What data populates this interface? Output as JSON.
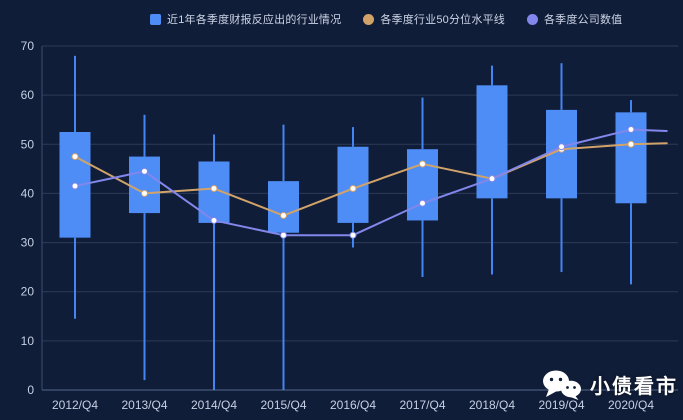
{
  "legend": {
    "items": [
      {
        "label": "近1年各季度财报反应出的行业情况",
        "marker": "square",
        "color": "#4e8df5"
      },
      {
        "label": "各季度行业50分位水平线",
        "marker": "circle",
        "color": "#d2a368"
      },
      {
        "label": "各季度公司数值",
        "marker": "circle",
        "color": "#8287eb"
      }
    ]
  },
  "watermark": {
    "icon": "wechat-icon",
    "text": "小债看市"
  },
  "colors": {
    "background": "#101d38",
    "gridline": "#2c3b59",
    "axis_line": "#55688e",
    "axis_text": "#c6d0e4",
    "candle": "#4e8df5",
    "percentile_line": "#d2a368",
    "company_line": "#8287eb"
  },
  "chart_data": {
    "type": "candlestick+line",
    "title": "",
    "categories": [
      "2012/Q4",
      "2013/Q4",
      "2014/Q4",
      "2015/Q4",
      "2016/Q4",
      "2017/Q4",
      "2018/Q4",
      "2019/Q4",
      "2020/Q4"
    ],
    "series": [
      {
        "name": "近1年各季度财报反应出的行业情况",
        "type": "candlestick",
        "color": "#4e8df5",
        "boxes": [
          {
            "low": 14.5,
            "box_low": 31,
            "box_high": 52.5,
            "high": 68
          },
          {
            "low": 2,
            "box_low": 36,
            "box_high": 47.5,
            "high": 56
          },
          {
            "low": 0,
            "box_low": 34,
            "box_high": 46.5,
            "high": 52
          },
          {
            "low": 0,
            "box_low": 32,
            "box_high": 42.5,
            "high": 54
          },
          {
            "low": 29,
            "box_low": 34,
            "box_high": 49.5,
            "high": 53.5
          },
          {
            "low": 23,
            "box_low": 34.5,
            "box_high": 49,
            "high": 59.5
          },
          {
            "low": 23.5,
            "box_low": 39,
            "box_high": 62,
            "high": 66
          },
          {
            "low": 24,
            "box_low": 39,
            "box_high": 57,
            "high": 66.5
          },
          {
            "low": 21.5,
            "box_low": 38,
            "box_high": 56.5,
            "high": 59
          }
        ]
      },
      {
        "name": "各季度行业50分位水平线",
        "type": "line",
        "color": "#d2a368",
        "values": [
          47.5,
          40,
          41,
          35.5,
          41,
          46,
          43,
          49,
          50
        ],
        "right_extension_value": 50.2
      },
      {
        "name": "各季度公司数值",
        "type": "line",
        "color": "#8287eb",
        "values": [
          41.5,
          44.5,
          34.5,
          31.5,
          31.5,
          38,
          43,
          49.5,
          53
        ],
        "right_extension_value": 52.7
      }
    ],
    "yaxis": {
      "min": 0,
      "max": 70,
      "step": 10,
      "ticks": [
        "0",
        "10",
        "20",
        "30",
        "40",
        "50",
        "60",
        "70"
      ]
    },
    "xlabel": "",
    "ylabel": "",
    "grid": "horizontal-only",
    "legend_position": "top"
  }
}
